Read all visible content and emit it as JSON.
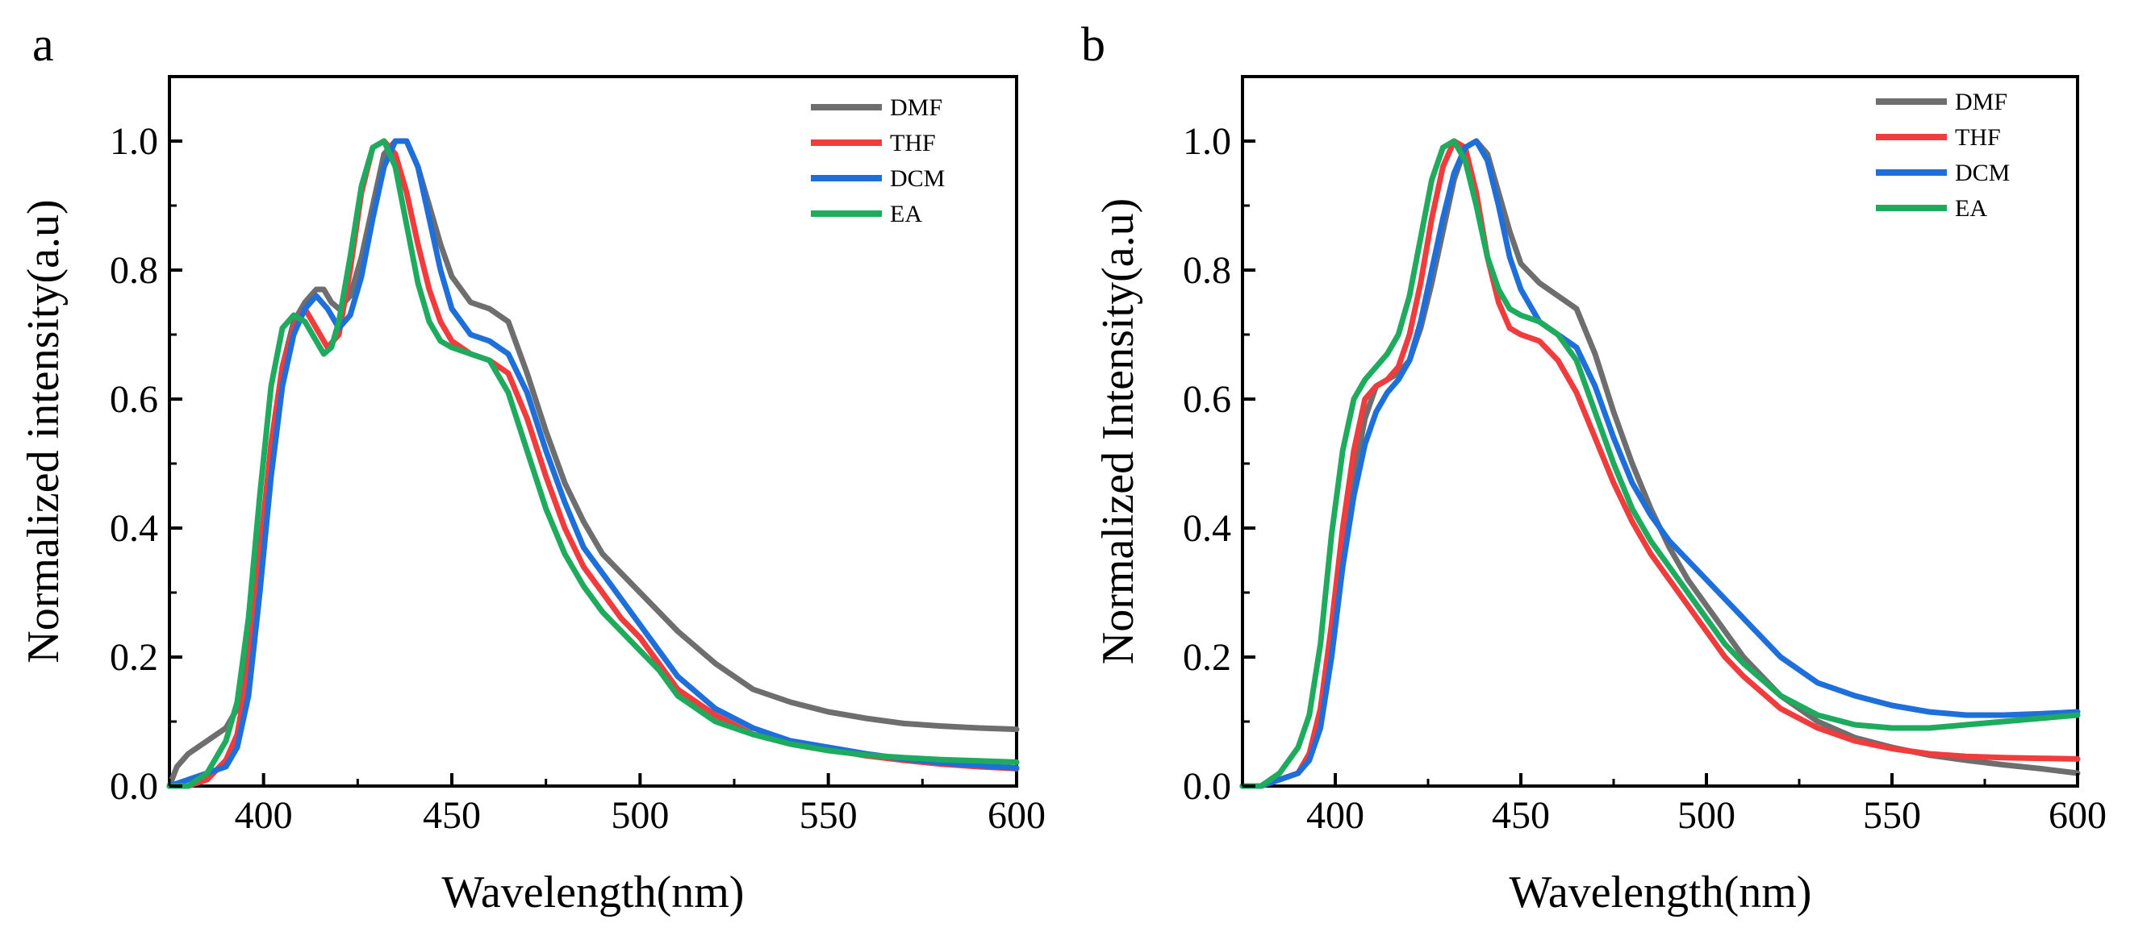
{
  "chart_data": [
    {
      "type": "line",
      "panel_label": "a",
      "xlabel": "Wavelength(nm)",
      "ylabel": "Normalized intensity(a.u)",
      "xlim": [
        375,
        600
      ],
      "ylim": [
        0,
        1.1
      ],
      "xticks": [
        400,
        450,
        500,
        550,
        600
      ],
      "yticks": [
        0.0,
        0.2,
        0.4,
        0.6,
        0.8,
        1.0
      ],
      "ytick_labels": [
        "0.0",
        "0.2",
        "0.4",
        "0.6",
        "0.8",
        "1.0"
      ],
      "legend_position": "top-right",
      "series": [
        {
          "name": "DMF",
          "color": "#6e6e6e",
          "x": [
            375,
            377,
            380,
            385,
            390,
            393,
            396,
            399,
            402,
            405,
            408,
            411,
            414,
            416,
            418,
            420,
            423,
            426,
            429,
            432,
            435,
            438,
            441,
            444,
            447,
            450,
            455,
            460,
            465,
            470,
            475,
            480,
            485,
            490,
            495,
            500,
            505,
            510,
            520,
            530,
            540,
            550,
            560,
            570,
            580,
            590,
            600
          ],
          "y": [
            0.0,
            0.03,
            0.05,
            0.07,
            0.09,
            0.12,
            0.2,
            0.36,
            0.53,
            0.65,
            0.72,
            0.75,
            0.77,
            0.77,
            0.75,
            0.74,
            0.76,
            0.82,
            0.9,
            0.98,
            1.0,
            1.0,
            0.96,
            0.9,
            0.84,
            0.79,
            0.75,
            0.74,
            0.72,
            0.64,
            0.55,
            0.47,
            0.41,
            0.36,
            0.33,
            0.3,
            0.27,
            0.24,
            0.19,
            0.15,
            0.13,
            0.115,
            0.105,
            0.097,
            0.093,
            0.09,
            0.088
          ]
        },
        {
          "name": "THF",
          "color": "#f03c3c",
          "x": [
            375,
            380,
            385,
            390,
            393,
            396,
            399,
            402,
            405,
            408,
            411,
            414,
            417,
            420,
            423,
            426,
            429,
            432,
            435,
            438,
            441,
            444,
            447,
            450,
            455,
            460,
            465,
            470,
            475,
            480,
            485,
            490,
            495,
            500,
            505,
            510,
            520,
            530,
            540,
            550,
            560,
            570,
            580,
            590,
            600
          ],
          "y": [
            0.0,
            0.0,
            0.01,
            0.04,
            0.08,
            0.18,
            0.35,
            0.53,
            0.65,
            0.71,
            0.74,
            0.71,
            0.68,
            0.7,
            0.8,
            0.92,
            0.99,
            1.0,
            0.98,
            0.92,
            0.84,
            0.77,
            0.72,
            0.69,
            0.67,
            0.66,
            0.64,
            0.57,
            0.48,
            0.4,
            0.34,
            0.3,
            0.26,
            0.23,
            0.19,
            0.15,
            0.11,
            0.08,
            0.068,
            0.057,
            0.047,
            0.04,
            0.034,
            0.03,
            0.027
          ]
        },
        {
          "name": "DCM",
          "color": "#1e6fd9",
          "x": [
            375,
            380,
            385,
            390,
            393,
            396,
            399,
            402,
            405,
            408,
            411,
            414,
            417,
            420,
            423,
            426,
            429,
            432,
            435,
            438,
            441,
            444,
            447,
            450,
            455,
            460,
            465,
            470,
            475,
            480,
            485,
            490,
            495,
            500,
            505,
            510,
            520,
            530,
            540,
            550,
            560,
            570,
            580,
            590,
            600
          ],
          "y": [
            0.0,
            0.01,
            0.02,
            0.03,
            0.06,
            0.14,
            0.3,
            0.48,
            0.62,
            0.7,
            0.74,
            0.76,
            0.74,
            0.71,
            0.73,
            0.79,
            0.88,
            0.96,
            1.0,
            1.0,
            0.96,
            0.88,
            0.8,
            0.74,
            0.7,
            0.69,
            0.67,
            0.61,
            0.52,
            0.44,
            0.37,
            0.33,
            0.29,
            0.25,
            0.21,
            0.17,
            0.12,
            0.09,
            0.07,
            0.06,
            0.05,
            0.042,
            0.036,
            0.032,
            0.028
          ]
        },
        {
          "name": "EA",
          "color": "#1fab5e",
          "x": [
            375,
            380,
            385,
            390,
            393,
            396,
            399,
            402,
            405,
            408,
            411,
            414,
            416,
            418,
            420,
            423,
            426,
            429,
            432,
            435,
            438,
            441,
            444,
            447,
            450,
            455,
            460,
            465,
            470,
            475,
            480,
            485,
            490,
            495,
            500,
            505,
            510,
            520,
            530,
            540,
            550,
            560,
            570,
            580,
            590,
            600
          ],
          "y": [
            0.0,
            0.0,
            0.02,
            0.07,
            0.13,
            0.26,
            0.45,
            0.62,
            0.71,
            0.73,
            0.72,
            0.69,
            0.67,
            0.68,
            0.72,
            0.82,
            0.93,
            0.99,
            1.0,
            0.96,
            0.87,
            0.78,
            0.72,
            0.69,
            0.68,
            0.67,
            0.66,
            0.61,
            0.52,
            0.43,
            0.36,
            0.31,
            0.27,
            0.24,
            0.21,
            0.18,
            0.14,
            0.1,
            0.08,
            0.065,
            0.055,
            0.048,
            0.044,
            0.041,
            0.039,
            0.037
          ]
        }
      ]
    },
    {
      "type": "line",
      "panel_label": "b",
      "xlabel": "Wavelength(nm)",
      "ylabel": "Normalized Intensity(a.u)",
      "xlim": [
        375,
        600
      ],
      "ylim": [
        0,
        1.1
      ],
      "xticks": [
        400,
        450,
        500,
        550,
        600
      ],
      "yticks": [
        0.0,
        0.2,
        0.4,
        0.6,
        0.8,
        1.0
      ],
      "ytick_labels": [
        "0.0",
        "0.2",
        "0.4",
        "0.6",
        "0.8",
        "1.0"
      ],
      "legend_position": "top-right",
      "series": [
        {
          "name": "DMF",
          "color": "#6e6e6e",
          "x": [
            375,
            380,
            385,
            390,
            393,
            396,
            399,
            402,
            405,
            408,
            411,
            414,
            417,
            420,
            423,
            426,
            429,
            432,
            435,
            438,
            441,
            444,
            447,
            450,
            455,
            460,
            465,
            470,
            475,
            480,
            485,
            490,
            495,
            500,
            505,
            510,
            520,
            530,
            540,
            550,
            560,
            570,
            580,
            590,
            600
          ],
          "y": [
            0.0,
            0.0,
            0.01,
            0.02,
            0.05,
            0.11,
            0.22,
            0.36,
            0.48,
            0.57,
            0.62,
            0.63,
            0.64,
            0.66,
            0.71,
            0.78,
            0.86,
            0.94,
            0.99,
            1.0,
            0.98,
            0.92,
            0.86,
            0.81,
            0.78,
            0.76,
            0.74,
            0.67,
            0.58,
            0.5,
            0.43,
            0.37,
            0.32,
            0.28,
            0.24,
            0.2,
            0.14,
            0.1,
            0.075,
            0.06,
            0.048,
            0.04,
            0.033,
            0.027,
            0.02
          ]
        },
        {
          "name": "THF",
          "color": "#f03c3c",
          "x": [
            375,
            380,
            385,
            390,
            393,
            396,
            399,
            402,
            405,
            408,
            411,
            414,
            417,
            420,
            423,
            426,
            429,
            432,
            435,
            438,
            441,
            444,
            447,
            450,
            455,
            460,
            465,
            470,
            475,
            480,
            485,
            490,
            495,
            500,
            505,
            510,
            520,
            530,
            540,
            550,
            560,
            570,
            580,
            590,
            600
          ],
          "y": [
            0.0,
            0.0,
            0.01,
            0.02,
            0.05,
            0.12,
            0.25,
            0.4,
            0.52,
            0.6,
            0.62,
            0.63,
            0.65,
            0.7,
            0.78,
            0.88,
            0.96,
            1.0,
            0.99,
            0.92,
            0.82,
            0.75,
            0.71,
            0.7,
            0.69,
            0.66,
            0.61,
            0.54,
            0.47,
            0.41,
            0.36,
            0.32,
            0.28,
            0.24,
            0.2,
            0.17,
            0.12,
            0.09,
            0.07,
            0.058,
            0.05,
            0.046,
            0.044,
            0.043,
            0.042
          ]
        },
        {
          "name": "DCM",
          "color": "#1e6fd9",
          "x": [
            375,
            380,
            385,
            390,
            393,
            396,
            399,
            402,
            405,
            408,
            411,
            414,
            417,
            420,
            423,
            426,
            429,
            432,
            435,
            438,
            441,
            444,
            447,
            450,
            455,
            460,
            465,
            470,
            475,
            480,
            485,
            490,
            495,
            500,
            505,
            510,
            520,
            530,
            540,
            550,
            560,
            570,
            580,
            590,
            600
          ],
          "y": [
            0.0,
            0.0,
            0.01,
            0.02,
            0.04,
            0.09,
            0.2,
            0.34,
            0.45,
            0.53,
            0.58,
            0.61,
            0.63,
            0.66,
            0.72,
            0.8,
            0.88,
            0.95,
            0.99,
            1.0,
            0.97,
            0.9,
            0.82,
            0.77,
            0.72,
            0.7,
            0.68,
            0.62,
            0.54,
            0.47,
            0.42,
            0.38,
            0.35,
            0.32,
            0.29,
            0.26,
            0.2,
            0.16,
            0.14,
            0.125,
            0.115,
            0.11,
            0.11,
            0.112,
            0.115
          ]
        },
        {
          "name": "EA",
          "color": "#1fab5e",
          "x": [
            375,
            380,
            385,
            390,
            393,
            396,
            399,
            402,
            405,
            408,
            411,
            414,
            417,
            420,
            423,
            426,
            429,
            432,
            435,
            438,
            441,
            444,
            447,
            450,
            455,
            460,
            465,
            470,
            475,
            480,
            485,
            490,
            495,
            500,
            505,
            510,
            520,
            530,
            540,
            550,
            560,
            570,
            580,
            590,
            600
          ],
          "y": [
            0.0,
            0.0,
            0.02,
            0.06,
            0.11,
            0.22,
            0.39,
            0.52,
            0.6,
            0.63,
            0.65,
            0.67,
            0.7,
            0.76,
            0.85,
            0.94,
            0.99,
            1.0,
            0.97,
            0.9,
            0.82,
            0.77,
            0.74,
            0.73,
            0.72,
            0.7,
            0.66,
            0.58,
            0.5,
            0.43,
            0.38,
            0.34,
            0.3,
            0.26,
            0.22,
            0.19,
            0.14,
            0.11,
            0.095,
            0.09,
            0.09,
            0.095,
            0.1,
            0.105,
            0.11
          ]
        }
      ]
    }
  ]
}
